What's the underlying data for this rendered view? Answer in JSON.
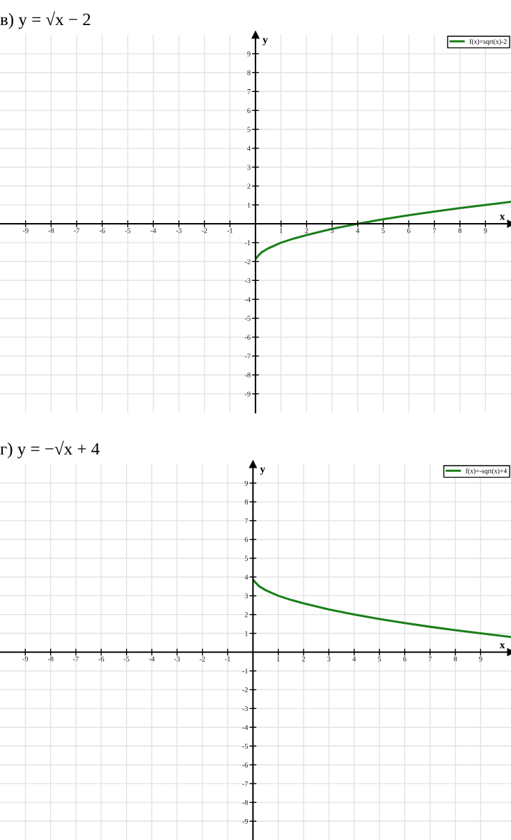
{
  "chart_data": [
    {
      "type": "line",
      "title": "в) y = √x − 2",
      "xlabel": "x",
      "ylabel": "y",
      "x": [
        0.03,
        0.1,
        0.25,
        0.5,
        1,
        1.5,
        2,
        3,
        4,
        5,
        6,
        7,
        8,
        9,
        10
      ],
      "series": [
        {
          "name": "f(x)=sqrt(x)-2",
          "color": "#1a7f1a",
          "values": [
            -1.83,
            -1.7,
            -1.5,
            -1.3,
            -1.0,
            -0.78,
            -0.6,
            -0.27,
            0,
            0.24,
            0.45,
            0.65,
            0.83,
            1.0,
            1.16
          ]
        }
      ],
      "xlim": [
        -10,
        10
      ],
      "ylim": [
        -10,
        10
      ],
      "xticks": [
        -9,
        -8,
        -7,
        -6,
        -5,
        -4,
        -3,
        -2,
        -1,
        1,
        2,
        3,
        4,
        5,
        6,
        7,
        8,
        9
      ],
      "yticks": [
        -9,
        -8,
        -7,
        -6,
        -5,
        -4,
        -3,
        -2,
        -1,
        1,
        2,
        3,
        4,
        5,
        6,
        7,
        8,
        9
      ],
      "grid": true,
      "legend": "top right"
    },
    {
      "type": "line",
      "title": "г) y = −√x + 4",
      "xlabel": "x",
      "ylabel": "y",
      "x": [
        0.03,
        0.1,
        0.25,
        0.5,
        1,
        1.5,
        2,
        3,
        4,
        5,
        6,
        7,
        8,
        9,
        10.2
      ],
      "series": [
        {
          "name": "f(x)=-sqrt(x)+4",
          "color": "#1a7f1a",
          "values": [
            3.83,
            3.7,
            3.5,
            3.3,
            3.0,
            2.78,
            2.6,
            2.27,
            2.0,
            1.76,
            1.55,
            1.35,
            1.17,
            1.0,
            0.81
          ]
        }
      ],
      "xlim": [
        -10,
        10.2
      ],
      "ylim": [
        -10,
        10
      ],
      "xticks": [
        -9,
        -8,
        -7,
        -6,
        -5,
        -4,
        -3,
        -2,
        -1,
        1,
        2,
        3,
        4,
        5,
        6,
        7,
        8,
        9
      ],
      "yticks": [
        -9,
        -8,
        -7,
        -6,
        -5,
        -4,
        -3,
        -2,
        -1,
        1,
        2,
        3,
        4,
        5,
        6,
        7,
        8,
        9
      ],
      "grid": true,
      "legend": "top right"
    }
  ]
}
